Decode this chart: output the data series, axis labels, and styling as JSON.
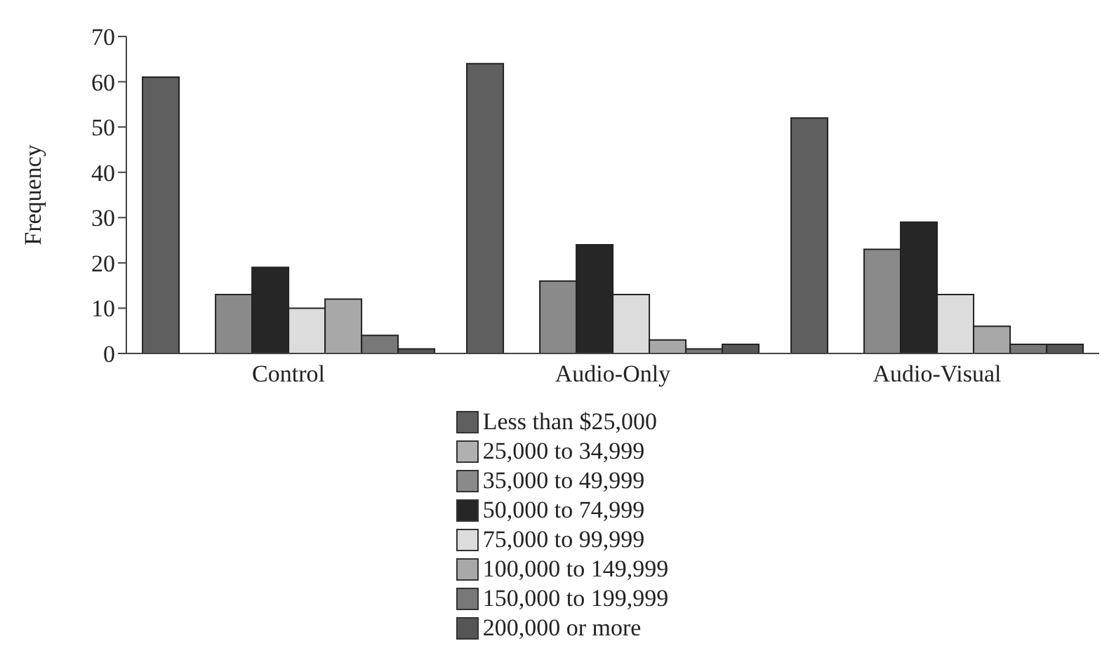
{
  "chart_data": {
    "type": "bar",
    "ylabel": "Frequency",
    "categories": [
      "Control",
      "Audio-Only",
      "Audio-Visual"
    ],
    "series": [
      {
        "name": "Less than $25,000",
        "color": "#5f5f5f",
        "values": [
          61,
          64,
          52
        ]
      },
      {
        "name": "25,000 to 34,999",
        "color": "#b0b0b0",
        "values": [
          0,
          0,
          0
        ]
      },
      {
        "name": "35,000 to 49,999",
        "color": "#8a8a8a",
        "values": [
          13,
          16,
          23
        ]
      },
      {
        "name": "50,000 to 74,999",
        "color": "#262626",
        "values": [
          19,
          24,
          29
        ]
      },
      {
        "name": "75,000 to 99,999",
        "color": "#dcdcdc",
        "values": [
          10,
          13,
          13
        ]
      },
      {
        "name": "100,000 to 149,999",
        "color": "#a8a8a8",
        "values": [
          12,
          3,
          6
        ]
      },
      {
        "name": "150,000 to 199,999",
        "color": "#787878",
        "values": [
          4,
          1,
          2
        ]
      },
      {
        "name": "200,000 or more",
        "color": "#555555",
        "values": [
          1,
          2,
          2
        ]
      }
    ],
    "ylim": [
      0,
      70
    ],
    "yticks": [
      0,
      10,
      20,
      30,
      40,
      50,
      60,
      70
    ],
    "grid": false,
    "legend": "bottom"
  }
}
